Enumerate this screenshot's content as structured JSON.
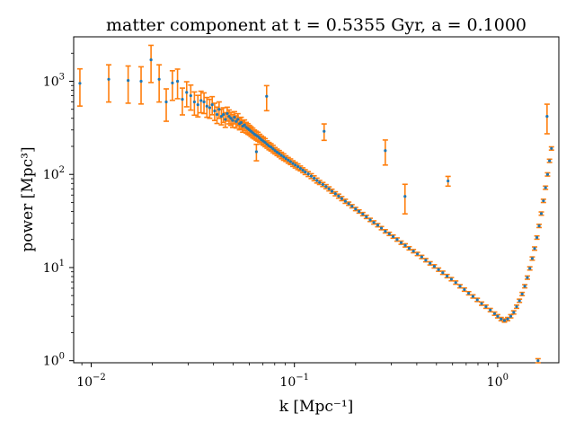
{
  "chart_data": {
    "type": "scatter",
    "title": "matter component at t = 0.5355 Gyr, a = 0.1000",
    "xlabel": "k [Mpc⁻¹]",
    "ylabel": "power [Mpc³]",
    "xscale": "log",
    "yscale": "log",
    "xlim": [
      0.0082,
      2.0
    ],
    "ylim": [
      0.95,
      3000
    ],
    "grid": false,
    "colors": {
      "points": "#1f77b4",
      "errorbars": "#ff7f0e"
    },
    "x_ticks": [
      {
        "value": 0.01,
        "base": "10",
        "exp": "−2"
      },
      {
        "value": 0.1,
        "base": "10",
        "exp": "−1"
      },
      {
        "value": 1,
        "base": "10",
        "exp": "0"
      }
    ],
    "y_ticks": [
      {
        "value": 1,
        "base": "10",
        "exp": "0"
      },
      {
        "value": 10,
        "base": "10",
        "exp": "1"
      },
      {
        "value": 100,
        "base": "10",
        "exp": "2"
      },
      {
        "value": 1000,
        "base": "10",
        "exp": "3"
      }
    ],
    "series": [
      {
        "x": [
          0.0088,
          0.0122,
          0.0152,
          0.0176,
          0.0197,
          0.0216,
          0.0234,
          0.0251,
          0.0266,
          0.0281,
          0.0295,
          0.0309,
          0.0322,
          0.0335,
          0.0347,
          0.0359,
          0.0371,
          0.0383,
          0.0394,
          0.0405,
          0.0416,
          0.0426,
          0.0437,
          0.0447,
          0.0457,
          0.0467,
          0.0477,
          0.0487,
          0.0497,
          0.0507,
          0.0517,
          0.0527,
          0.0537,
          0.0547,
          0.0557,
          0.0568,
          0.0579,
          0.059,
          0.0601,
          0.0612,
          0.0624,
          0.0636,
          0.0649,
          0.0662,
          0.0675,
          0.0689,
          0.0703,
          0.0718,
          0.0734,
          0.075,
          0.0767,
          0.0785,
          0.0803,
          0.0822,
          0.0842,
          0.0863,
          0.0885,
          0.0908,
          0.0932,
          0.0957,
          0.0983,
          0.101,
          0.104,
          0.107,
          0.11,
          0.113,
          0.117,
          0.121,
          0.125,
          0.129,
          0.133,
          0.138,
          0.143,
          0.148,
          0.153,
          0.159,
          0.165,
          0.171,
          0.178,
          0.185,
          0.192,
          0.2,
          0.208,
          0.217,
          0.226,
          0.236,
          0.246,
          0.257,
          0.268,
          0.28,
          0.293,
          0.306,
          0.32,
          0.335,
          0.351,
          0.367,
          0.385,
          0.403,
          0.423,
          0.443,
          0.465,
          0.488,
          0.512,
          0.537,
          0.564,
          0.592,
          0.622,
          0.653,
          0.686,
          0.72,
          0.756,
          0.794,
          0.834,
          0.876,
          0.92,
          0.966,
          1.0,
          1.04,
          1.08,
          1.12,
          1.16,
          1.2,
          1.24,
          1.28,
          1.32,
          1.36,
          1.4,
          1.44,
          1.48,
          1.52,
          1.56,
          1.6,
          1.64,
          1.68,
          1.72,
          1.76,
          1.8,
          1.84
        ],
        "y": [
          950,
          1050,
          1020,
          1000,
          1700,
          1050,
          600,
          960,
          1000,
          640,
          760,
          700,
          600,
          560,
          620,
          600,
          540,
          520,
          560,
          480,
          440,
          500,
          420,
          440,
          390,
          450,
          420,
          400,
          380,
          410,
          370,
          390,
          350,
          360,
          330,
          340,
          320,
          310,
          300,
          290,
          280,
          270,
          262,
          255,
          245,
          235,
          228,
          220,
          210,
          202,
          196,
          188,
          180,
          173,
          167,
          160,
          154,
          148,
          142,
          137,
          131,
          126,
          121,
          116,
          111,
          106,
          101,
          96,
          91,
          86,
          82,
          78,
          74,
          70,
          66,
          62,
          58.5,
          55,
          51.5,
          48.5,
          45.5,
          42.5,
          40,
          37.5,
          35,
          32.5,
          30.5,
          28.5,
          26.5,
          24.5,
          23,
          21.5,
          20,
          18.5,
          17.3,
          16.1,
          15,
          14,
          13,
          12,
          11.1,
          10.3,
          9.5,
          8.8,
          8.1,
          7.5,
          6.9,
          6.3,
          5.8,
          5.3,
          4.9,
          4.5,
          4.1,
          3.8,
          3.5,
          3.2,
          3.0,
          2.8,
          2.7,
          2.8,
          3.0,
          3.3,
          3.8,
          4.4,
          5.2,
          6.3,
          7.8,
          9.8,
          12.5,
          16,
          21,
          28,
          38,
          52,
          72,
          100,
          140,
          190
        ],
        "err_frac": [
          0.43,
          0.43,
          0.43,
          0.43,
          0.43,
          0.43,
          0.38,
          0.35,
          0.35,
          0.32,
          0.3,
          0.3,
          0.28,
          0.26,
          0.26,
          0.25,
          0.24,
          0.23,
          0.22,
          0.21,
          0.2,
          0.2,
          0.19,
          0.18,
          0.18,
          0.17,
          0.17,
          0.16,
          0.16,
          0.15,
          0.15,
          0.15,
          0.14,
          0.14,
          0.14,
          0.13,
          0.13,
          0.13,
          0.12,
          0.12,
          0.12,
          0.11,
          0.11,
          0.11,
          0.1,
          0.1,
          0.1,
          0.1,
          0.09,
          0.09,
          0.09,
          0.09,
          0.08,
          0.08,
          0.08,
          0.08,
          0.08,
          0.07,
          0.07,
          0.07,
          0.07,
          0.07,
          0.07,
          0.06,
          0.06,
          0.06,
          0.06,
          0.06,
          0.06,
          0.06,
          0.05,
          0.05,
          0.05,
          0.05,
          0.05,
          0.05,
          0.05,
          0.05,
          0.05,
          0.04,
          0.04,
          0.04,
          0.04,
          0.04,
          0.04,
          0.04,
          0.04,
          0.04,
          0.04,
          0.04,
          0.04,
          0.04,
          0.04,
          0.04,
          0.04,
          0.04,
          0.04,
          0.04,
          0.04,
          0.04,
          0.04,
          0.04,
          0.04,
          0.04,
          0.04,
          0.04,
          0.04,
          0.04,
          0.04,
          0.04,
          0.04,
          0.04,
          0.04,
          0.04,
          0.04,
          0.04,
          0.04,
          0.04,
          0.04,
          0.04,
          0.04,
          0.04,
          0.04,
          0.04,
          0.04,
          0.04,
          0.04,
          0.04,
          0.04,
          0.04,
          0.04,
          0.04,
          0.04,
          0.04,
          0.04,
          0.04,
          0.04,
          0.04
        ]
      }
    ],
    "outliers": [
      {
        "x": 0.28,
        "y": 180,
        "err_frac": 0.3
      },
      {
        "x": 0.35,
        "y": 58,
        "err_frac": 0.35
      },
      {
        "x": 0.57,
        "y": 85,
        "err_frac": 0.12
      },
      {
        "x": 0.065,
        "y": 175,
        "err_frac": 0.2
      },
      {
        "x": 0.073,
        "y": 690,
        "err_frac": 0.3
      },
      {
        "x": 0.14,
        "y": 290,
        "err_frac": 0.2
      },
      {
        "x": 1.75,
        "y": 420,
        "err_frac": 0.35
      },
      {
        "x": 1.58,
        "y": 1.0,
        "err_frac": 0.05
      }
    ]
  }
}
